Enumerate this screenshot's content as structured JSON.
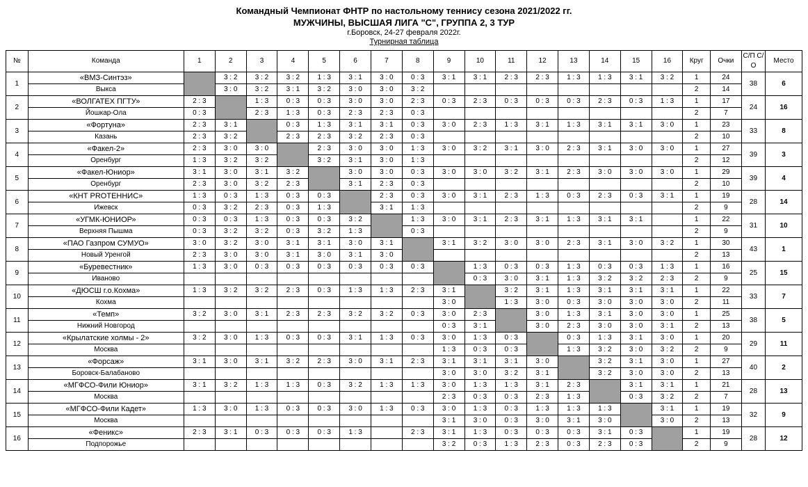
{
  "header": {
    "line1": "Командный Чемпионат ФНТР по настольному теннису сезона 2021/2022 гг.",
    "line2": "МУЖЧИНЫ, ВЫСШАЯ ЛИГА \"С\", ГРУППА 2, 3 ТУР",
    "line3": "г.Боровск, 24-27 февраля 2022г.",
    "line4": "Турнирная таблица"
  },
  "columns": {
    "num": "№",
    "team": "Команда",
    "rounds": [
      "1",
      "2",
      "3",
      "4",
      "5",
      "6",
      "7",
      "8",
      "9",
      "10",
      "11",
      "12",
      "13",
      "14",
      "15",
      "16"
    ],
    "krug": "Круг",
    "ochki": "Очки",
    "sp": "С/П С/О",
    "mesto": "Место"
  },
  "teams": [
    {
      "num": 1,
      "name": "«ВМЗ-Синтэз»",
      "city": "Выкса",
      "r1": [
        "",
        "3 : 2",
        "3 : 2",
        "3 : 2",
        "1 : 3",
        "3 : 1",
        "3 : 0",
        "0 : 3",
        "3 : 1",
        "3 : 1",
        "2 : 3",
        "2 : 3",
        "1 : 3",
        "1 : 3",
        "3 : 1",
        "3 : 2"
      ],
      "r2": [
        "",
        "3 : 0",
        "3 : 2",
        "3 : 1",
        "3 : 2",
        "3 : 0",
        "3 : 0",
        "3 : 2",
        "",
        "",
        "",
        "",
        "",
        "",
        "",
        ""
      ],
      "krug": [
        "1",
        "2"
      ],
      "ochki": [
        "24",
        "14"
      ],
      "sp": "38",
      "mesto": "6"
    },
    {
      "num": 2,
      "name": "«ВОЛГАТЕХ ПГТУ»",
      "city": "Йошкар-Ола",
      "r1": [
        "2 : 3",
        "",
        "1 : 3",
        "0 : 3",
        "0 : 3",
        "3 : 0",
        "3 : 0",
        "2 : 3",
        "0 : 3",
        "2 : 3",
        "0 : 3",
        "0 : 3",
        "0 : 3",
        "2 : 3",
        "0 : 3",
        "1 : 3"
      ],
      "r2": [
        "0 : 3",
        "",
        "2 : 3",
        "1 : 3",
        "0 : 3",
        "2 : 3",
        "2 : 3",
        "0 : 3",
        "",
        "",
        "",
        "",
        "",
        "",
        "",
        ""
      ],
      "krug": [
        "1",
        "2"
      ],
      "ochki": [
        "17",
        "7"
      ],
      "sp": "24",
      "mesto": "16"
    },
    {
      "num": 3,
      "name": "«Фортуна»",
      "city": "Казань",
      "r1": [
        "2 : 3",
        "3 : 1",
        "",
        "0 : 3",
        "1 : 3",
        "3 : 1",
        "3 : 1",
        "0 : 3",
        "3 : 0",
        "2 : 3",
        "1 : 3",
        "3 : 1",
        "1 : 3",
        "3 : 1",
        "3 : 1",
        "3 : 0"
      ],
      "r2": [
        "2 : 3",
        "3 : 2",
        "",
        "2 : 3",
        "2 : 3",
        "3 : 2",
        "2 : 3",
        "0 : 3",
        "",
        "",
        "",
        "",
        "",
        "",
        "",
        ""
      ],
      "krug": [
        "1",
        "2"
      ],
      "ochki": [
        "23",
        "10"
      ],
      "sp": "33",
      "mesto": "8"
    },
    {
      "num": 4,
      "name": "«Факел-2»",
      "city": "Оренбург",
      "r1": [
        "2 : 3",
        "3 : 0",
        "3 : 0",
        "",
        "2 : 3",
        "3 : 0",
        "3 : 0",
        "1 : 3",
        "3 : 0",
        "3 : 2",
        "3 : 1",
        "3 : 0",
        "2 : 3",
        "3 : 1",
        "3 : 0",
        "3 : 0"
      ],
      "r2": [
        "1 : 3",
        "3 : 2",
        "3 : 2",
        "",
        "3 : 2",
        "3 : 1",
        "3 : 0",
        "1 : 3",
        "",
        "",
        "",
        "",
        "",
        "",
        "",
        ""
      ],
      "krug": [
        "1",
        "2"
      ],
      "ochki": [
        "27",
        "12"
      ],
      "sp": "39",
      "mesto": "3"
    },
    {
      "num": 5,
      "name": "«Факел-Юниор»",
      "city": "Оренбург",
      "r1": [
        "3 : 1",
        "3 : 0",
        "3 : 1",
        "3 : 2",
        "",
        "3 : 0",
        "3 : 0",
        "0 : 3",
        "3 : 0",
        "3 : 0",
        "3 : 2",
        "3 : 1",
        "2 : 3",
        "3 : 0",
        "3 : 0",
        "3 : 0"
      ],
      "r2": [
        "2 : 3",
        "3 : 0",
        "3 : 2",
        "2 : 3",
        "",
        "3 : 1",
        "2 : 3",
        "0 : 3",
        "",
        "",
        "",
        "",
        "",
        "",
        "",
        ""
      ],
      "krug": [
        "1",
        "2"
      ],
      "ochki": [
        "29",
        "10"
      ],
      "sp": "39",
      "mesto": "4"
    },
    {
      "num": 6,
      "name": "«КНТ PROТЕННИС»",
      "city": "Ижевск",
      "r1": [
        "1 : 3",
        "0 : 3",
        "1 : 3",
        "0 : 3",
        "0 : 3",
        "",
        "2 : 3",
        "0 : 3",
        "3 : 0",
        "3 : 1",
        "2 : 3",
        "1 : 3",
        "0 : 3",
        "2 : 3",
        "0 : 3",
        "3 : 1"
      ],
      "r2": [
        "0 : 3",
        "3 : 2",
        "2 : 3",
        "0 : 3",
        "1 : 3",
        "",
        "3 : 1",
        "1 : 3",
        "",
        "",
        "",
        "",
        "",
        "",
        "",
        ""
      ],
      "krug": [
        "1",
        "2"
      ],
      "ochki": [
        "19",
        "9"
      ],
      "sp": "28",
      "mesto": "14"
    },
    {
      "num": 7,
      "name": "«УГМК-ЮНИОР»",
      "city": "Верхняя Пышма",
      "r1": [
        "0 : 3",
        "0 : 3",
        "1 : 3",
        "0 : 3",
        "0 : 3",
        "3 : 2",
        "",
        "1 : 3",
        "3 : 0",
        "3 : 1",
        "2 : 3",
        "3 : 1",
        "1 : 3",
        "3 : 1",
        "3 : 1",
        ""
      ],
      "r2": [
        "0 : 3",
        "3 : 2",
        "3 : 2",
        "0 : 3",
        "3 : 2",
        "1 : 3",
        "",
        "0 : 3",
        "",
        "",
        "",
        "",
        "",
        "",
        "",
        ""
      ],
      "krug": [
        "1",
        "2"
      ],
      "ochki": [
        "22",
        "9"
      ],
      "sp": "31",
      "mesto": "10"
    },
    {
      "num": 8,
      "name": "«ПАО Газпром СУМУО»",
      "city": "Новый Уренгой",
      "r1": [
        "3 : 0",
        "3 : 2",
        "3 : 0",
        "3 : 1",
        "3 : 1",
        "3 : 0",
        "3 : 1",
        "",
        "3 : 1",
        "3 : 2",
        "3 : 0",
        "3 : 0",
        "2 : 3",
        "3 : 1",
        "3 : 0",
        "3 : 2"
      ],
      "r2": [
        "2 : 3",
        "3 : 0",
        "3 : 0",
        "3 : 1",
        "3 : 0",
        "3 : 1",
        "3 : 0",
        "",
        "",
        "",
        "",
        "",
        "",
        "",
        "",
        ""
      ],
      "krug": [
        "1",
        "2"
      ],
      "ochki": [
        "30",
        "13"
      ],
      "sp": "43",
      "mesto": "1"
    },
    {
      "num": 9,
      "name": "«Буревестник»",
      "city": "Иваново",
      "r1": [
        "1 : 3",
        "3 : 0",
        "0 : 3",
        "0 : 3",
        "0 : 3",
        "0 : 3",
        "0 : 3",
        "0 : 3",
        "",
        "1 : 3",
        "0 : 3",
        "0 : 3",
        "1 : 3",
        "0 : 3",
        "0 : 3",
        "1 : 3"
      ],
      "r2": [
        "",
        "",
        "",
        "",
        "",
        "",
        "",
        "",
        "",
        "0 : 3",
        "3 : 0",
        "3 : 1",
        "1 : 3",
        "3 : 2",
        "3 : 2",
        "2 : 3"
      ],
      "krug": [
        "1",
        "2"
      ],
      "ochki": [
        "16",
        "9"
      ],
      "sp": "25",
      "mesto": "15"
    },
    {
      "num": 10,
      "name": "«ДЮСШ г.о.Кохма»",
      "city": "Кохма",
      "r1": [
        "1 : 3",
        "3 : 2",
        "3 : 2",
        "2 : 3",
        "0 : 3",
        "1 : 3",
        "1 : 3",
        "2 : 3",
        "3 : 1",
        "",
        "3 : 2",
        "3 : 1",
        "1 : 3",
        "3 : 1",
        "3 : 1",
        "3 : 1"
      ],
      "r2": [
        "",
        "",
        "",
        "",
        "",
        "",
        "",
        "",
        "3 : 0",
        "",
        "1 : 3",
        "3 : 0",
        "0 : 3",
        "3 : 0",
        "3 : 0",
        "3 : 0"
      ],
      "krug": [
        "1",
        "2"
      ],
      "ochki": [
        "22",
        "11"
      ],
      "sp": "33",
      "mesto": "7"
    },
    {
      "num": 11,
      "name": "«Темп»",
      "city": "Нижний Новгород",
      "r1": [
        "3 : 2",
        "3 : 0",
        "3 : 1",
        "2 : 3",
        "2 : 3",
        "3 : 2",
        "3 : 2",
        "0 : 3",
        "3 : 0",
        "2 : 3",
        "",
        "3 : 0",
        "1 : 3",
        "3 : 1",
        "3 : 0",
        "3 : 0"
      ],
      "r2": [
        "",
        "",
        "",
        "",
        "",
        "",
        "",
        "",
        "0 : 3",
        "3 : 1",
        "",
        "3 : 0",
        "2 : 3",
        "3 : 0",
        "3 : 0",
        "3 : 1"
      ],
      "krug": [
        "1",
        "2"
      ],
      "ochki": [
        "25",
        "13"
      ],
      "sp": "38",
      "mesto": "5"
    },
    {
      "num": 12,
      "name": "«Крылатские холмы - 2»",
      "city": "Москва",
      "r1": [
        "3 : 2",
        "3 : 0",
        "1 : 3",
        "0 : 3",
        "0 : 3",
        "3 : 1",
        "1 : 3",
        "0 : 3",
        "3 : 0",
        "1 : 3",
        "0 : 3",
        "",
        "0 : 3",
        "1 : 3",
        "3 : 1",
        "3 : 0"
      ],
      "r2": [
        "",
        "",
        "",
        "",
        "",
        "",
        "",
        "",
        "1 : 3",
        "0 : 3",
        "0 : 3",
        "",
        "1 : 3",
        "3 : 2",
        "3 : 0",
        "3 : 2"
      ],
      "krug": [
        "1",
        "2"
      ],
      "ochki": [
        "20",
        "9"
      ],
      "sp": "29",
      "mesto": "11"
    },
    {
      "num": 13,
      "name": "«Форсаж»",
      "city": "Боровск-Балабаново",
      "r1": [
        "3 : 1",
        "3 : 0",
        "3 : 1",
        "3 : 2",
        "2 : 3",
        "3 : 0",
        "3 : 1",
        "2 : 3",
        "3 : 1",
        "3 : 1",
        "3 : 1",
        "3 : 0",
        "",
        "3 : 2",
        "3 : 1",
        "3 : 0"
      ],
      "r2": [
        "",
        "",
        "",
        "",
        "",
        "",
        "",
        "",
        "3 : 0",
        "3 : 0",
        "3 : 2",
        "3 : 1",
        "",
        "3 : 2",
        "3 : 0",
        "3 : 0"
      ],
      "krug": [
        "1",
        "2"
      ],
      "ochki": [
        "27",
        "13"
      ],
      "sp": "40",
      "mesto": "2"
    },
    {
      "num": 14,
      "name": "«МГФСО-Фили Юниор»",
      "city": "Москва",
      "r1": [
        "3 : 1",
        "3 : 2",
        "1 : 3",
        "1 : 3",
        "0 : 3",
        "3 : 2",
        "1 : 3",
        "1 : 3",
        "3 : 0",
        "1 : 3",
        "1 : 3",
        "3 : 1",
        "2 : 3",
        "",
        "3 : 1",
        "3 : 1"
      ],
      "r2": [
        "",
        "",
        "",
        "",
        "",
        "",
        "",
        "",
        "2 : 3",
        "0 : 3",
        "0 : 3",
        "2 : 3",
        "1 : 3",
        "",
        "0 : 3",
        "3 : 2"
      ],
      "krug": [
        "1",
        "2"
      ],
      "ochki": [
        "21",
        "7"
      ],
      "sp": "28",
      "mesto": "13"
    },
    {
      "num": 15,
      "name": "«МГФСО-Фили Кадет»",
      "city": "Москва",
      "r1": [
        "1 : 3",
        "3 : 0",
        "1 : 3",
        "0 : 3",
        "0 : 3",
        "3 : 0",
        "1 : 3",
        "0 : 3",
        "3 : 0",
        "1 : 3",
        "0 : 3",
        "1 : 3",
        "1 : 3",
        "1 : 3",
        "",
        "3 : 1"
      ],
      "r2": [
        "",
        "",
        "",
        "",
        "",
        "",
        "",
        "",
        "3 : 1",
        "3 : 0",
        "0 : 3",
        "3 : 0",
        "3 : 1",
        "3 : 0",
        "",
        "3 : 0"
      ],
      "krug": [
        "1",
        "2"
      ],
      "ochki": [
        "19",
        "13"
      ],
      "sp": "32",
      "mesto": "9"
    },
    {
      "num": 16,
      "name": "«Феникс»",
      "city": "Подпорожье",
      "r1": [
        "2 : 3",
        "3 : 1",
        "0 : 3",
        "0 : 3",
        "0 : 3",
        "1 : 3",
        "",
        "2 : 3",
        "3 : 1",
        "1 : 3",
        "0 : 3",
        "0 : 3",
        "0 : 3",
        "3 : 1",
        "0 : 3",
        ""
      ],
      "r2": [
        "",
        "",
        "",
        "",
        "",
        "",
        "",
        "",
        "3 : 2",
        "0 : 3",
        "1 : 3",
        "2 : 3",
        "0 : 3",
        "2 : 3",
        "0 : 3",
        ""
      ],
      "krug": [
        "1",
        "2"
      ],
      "ochki": [
        "19",
        "9"
      ],
      "sp": "28",
      "mesto": "12"
    }
  ]
}
